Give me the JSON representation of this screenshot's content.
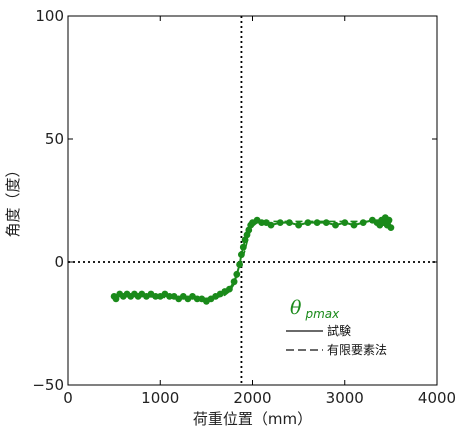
{
  "chart_data": {
    "type": "line",
    "xlabel": "荷重位置（mm）",
    "ylabel": "角度（度）",
    "xlim": [
      0,
      4000
    ],
    "ylim": [
      -50,
      100
    ],
    "xticks": [
      "0",
      "1000",
      "2000",
      "3000",
      "4000"
    ],
    "yticks": [
      "−50",
      "0",
      "50",
      "100"
    ],
    "reference_lines": {
      "x": 1880,
      "y": 0
    },
    "legend": {
      "title_main": "θ",
      "title_sub": "pmax",
      "entries": [
        "試験",
        "有限要素法"
      ],
      "placement": "lower-right"
    },
    "colors": {
      "series": "#1a8a1a",
      "axis": "#000000"
    },
    "series": [
      {
        "name": "試験",
        "style": "solid-with-markers",
        "x": [
          500,
          520,
          560,
          600,
          640,
          680,
          720,
          760,
          800,
          850,
          900,
          950,
          1000,
          1050,
          1100,
          1150,
          1200,
          1250,
          1300,
          1350,
          1400,
          1450,
          1500,
          1550,
          1600,
          1650,
          1700,
          1750,
          1800,
          1830,
          1860,
          1880,
          1900,
          1920,
          1940,
          1960,
          1980,
          2000,
          2050,
          2100,
          2150,
          2200,
          2300,
          2400,
          2500,
          2600,
          2700,
          2800,
          2900,
          3000,
          3100,
          3200,
          3300,
          3350,
          3380,
          3400,
          3420,
          3440,
          3460,
          3480,
          3500
        ],
        "y": [
          -14,
          -15,
          -13,
          -14,
          -13,
          -14,
          -13,
          -14,
          -13,
          -14,
          -13,
          -14,
          -14,
          -13,
          -14,
          -14,
          -15,
          -14,
          -15,
          -14,
          -15,
          -15,
          -16,
          -15,
          -14,
          -13,
          -12,
          -11,
          -8,
          -5,
          -1,
          3,
          6,
          9,
          11,
          13,
          15,
          16,
          17,
          16,
          16,
          15,
          16,
          16,
          15,
          16,
          16,
          16,
          15,
          16,
          15,
          16,
          17,
          16,
          15,
          17,
          16,
          18,
          15,
          17,
          14
        ]
      },
      {
        "name": "有限要素法",
        "style": "dashed",
        "x": [
          500,
          800,
          1100,
          1400,
          1600,
          1700,
          1750,
          1800,
          1850,
          1880,
          1920,
          1960,
          2000,
          2050,
          2100,
          2300,
          2600,
          2900,
          3200,
          3500
        ],
        "y": [
          -14,
          -14,
          -14.5,
          -15,
          -14.5,
          -13.5,
          -12,
          -9,
          -4,
          0,
          5,
          11,
          14.5,
          16,
          16.5,
          16.5,
          16.5,
          16.5,
          16.5,
          16.5
        ]
      }
    ]
  }
}
